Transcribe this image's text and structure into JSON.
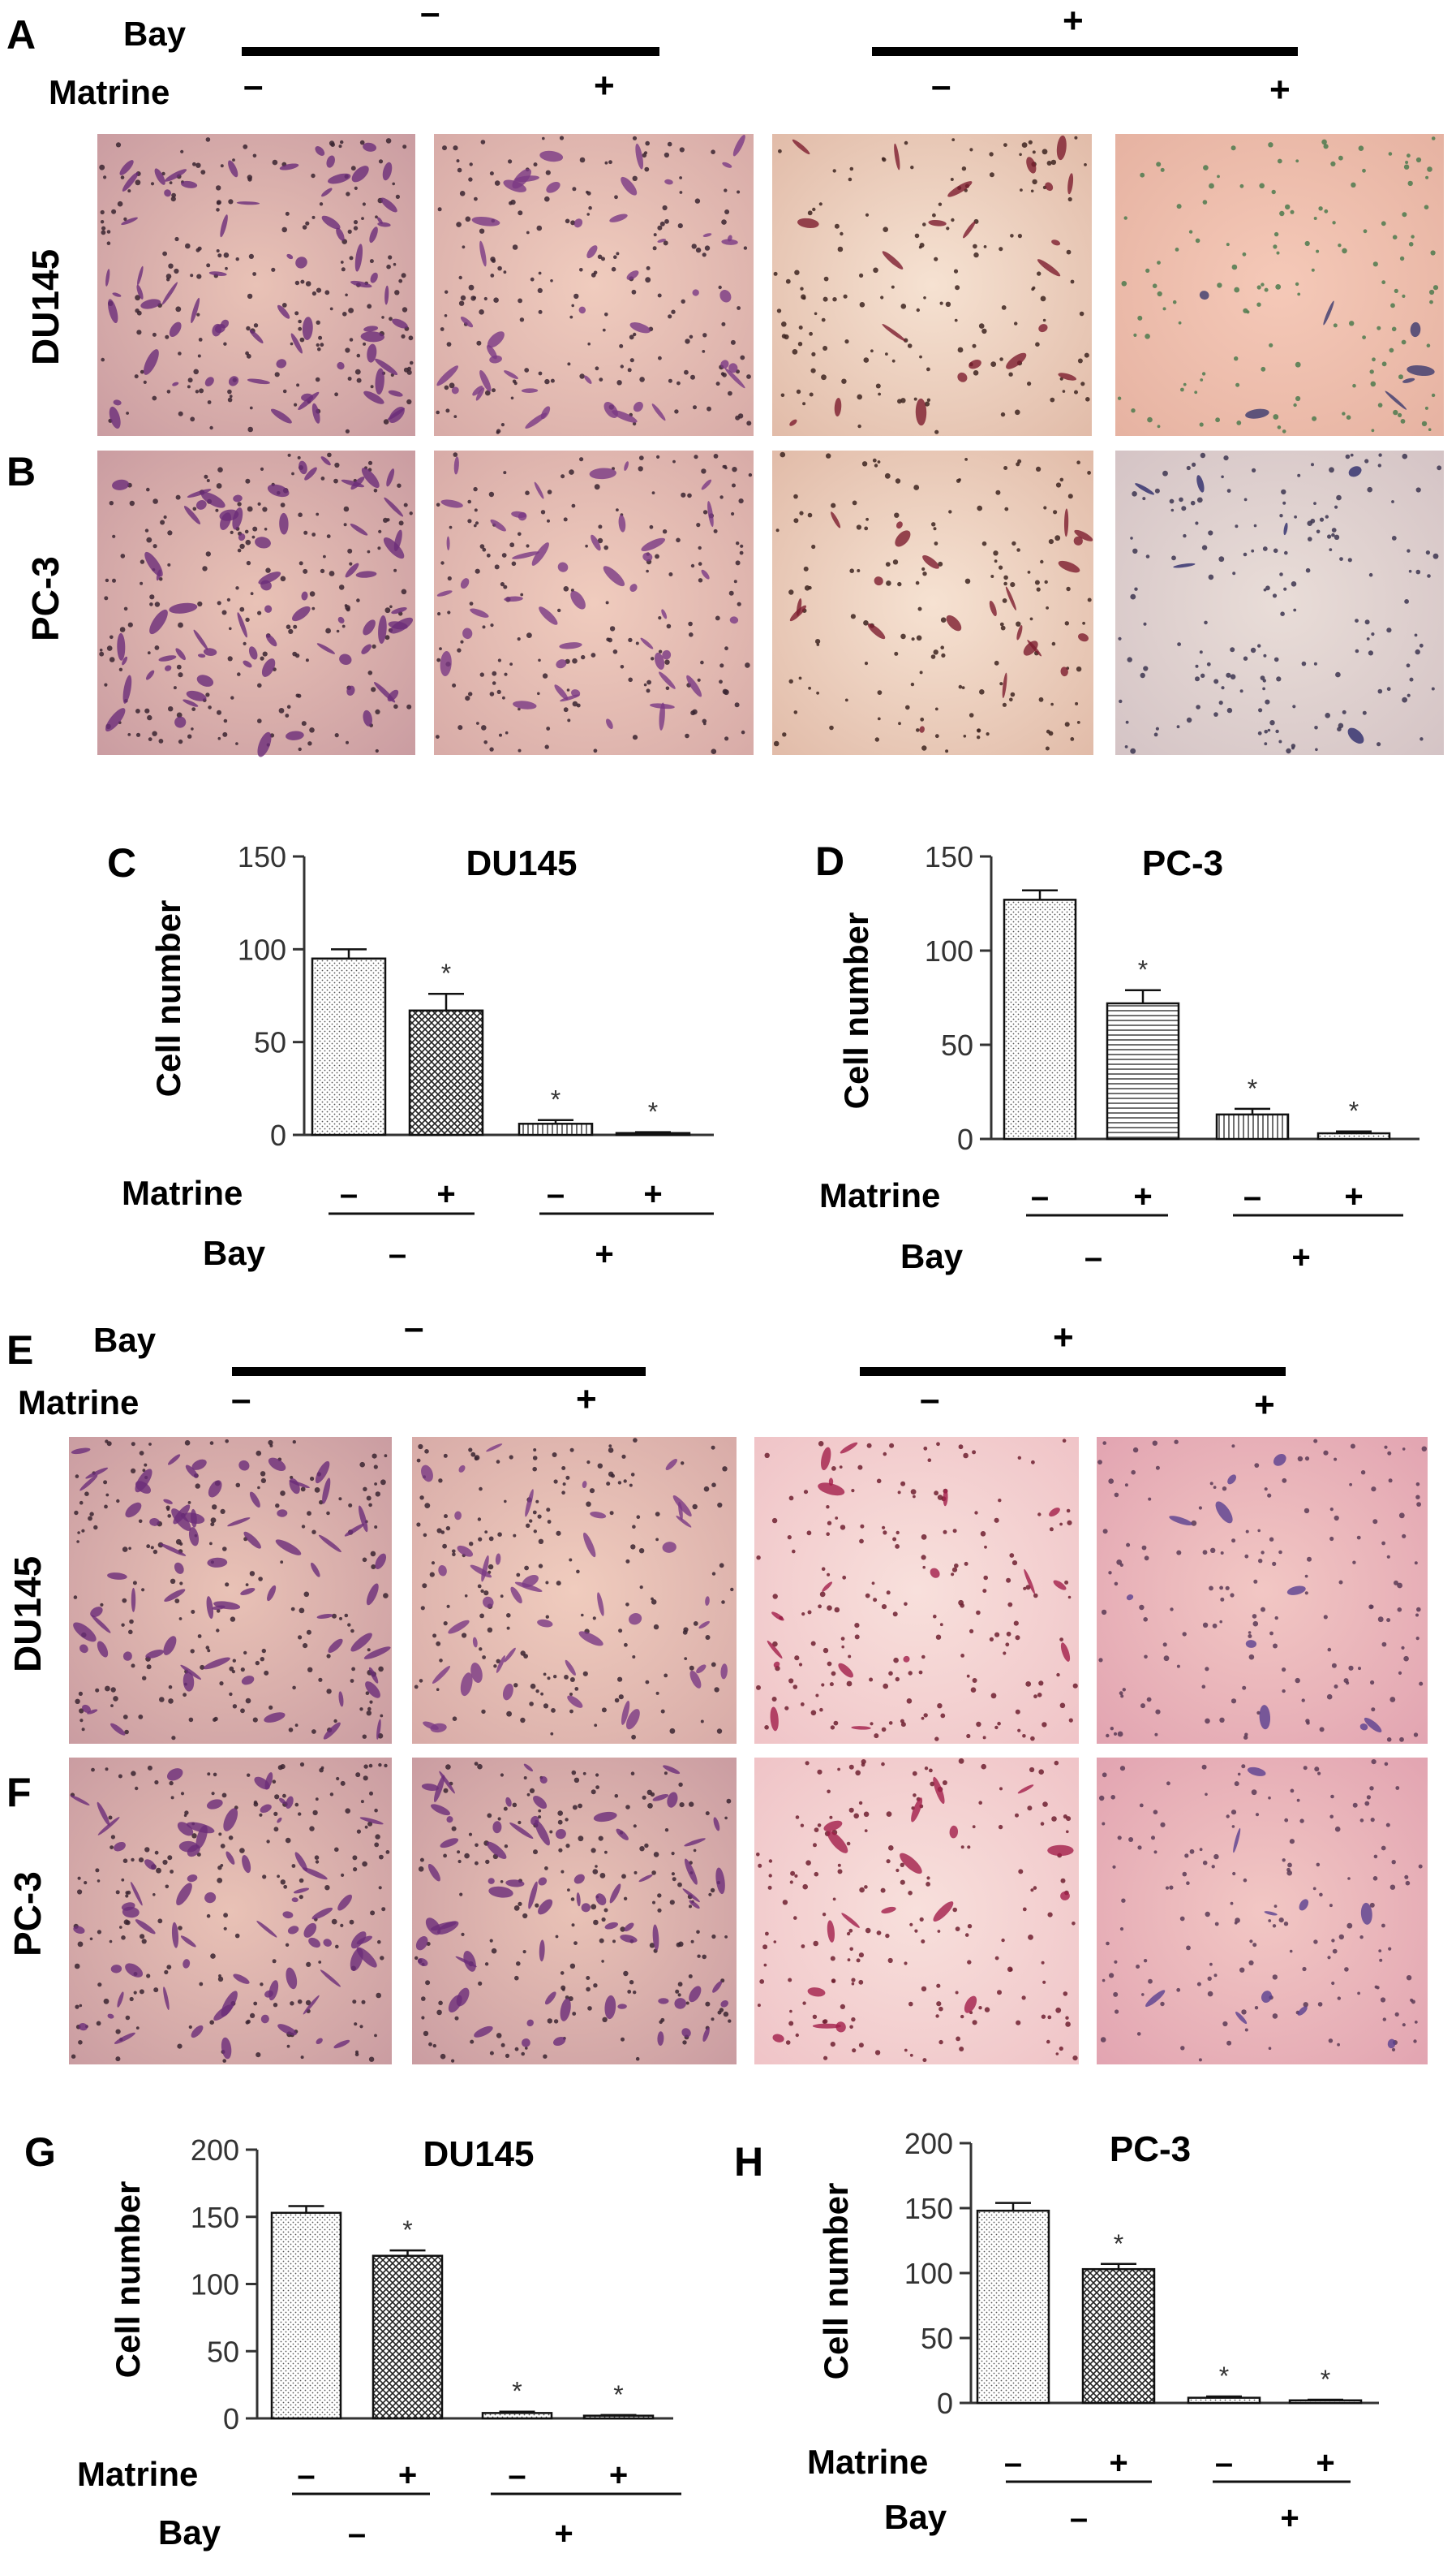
{
  "panel_letters": [
    "A",
    "B",
    "C",
    "D",
    "E",
    "F",
    "G",
    "H"
  ],
  "treatment_header": {
    "bay_label": "Bay",
    "matrine_label": "Matrine",
    "minus": "–",
    "plus": "+"
  },
  "row_labels": {
    "du145": "DU145",
    "pc3": "PC-3"
  },
  "micrographs": {
    "A": {
      "style": [
        "purple-dense",
        "purple-medium",
        "maroon-sparse",
        "green-sparse"
      ]
    },
    "B": {
      "style": [
        "purple-dense",
        "purple-medium",
        "maroon-sparse",
        "lavender-sparse"
      ]
    },
    "E": {
      "style": [
        "purple-dense",
        "purple-medium",
        "pink-sparse",
        "pink-very-sparse"
      ]
    },
    "F": {
      "style": [
        "purple-dense",
        "purple-dense",
        "pink-sparse",
        "pink-very-sparse"
      ]
    }
  },
  "axis_label_cells": "Cell number",
  "significance_marker": "*",
  "chart_data": [
    {
      "panel": "C",
      "type": "bar",
      "title": "DU145",
      "ylabel": "Cell number",
      "ylim": [
        0,
        150
      ],
      "yticks": [
        0,
        50,
        100,
        150
      ],
      "values": [
        95,
        67,
        6,
        1
      ],
      "errors": [
        5,
        9,
        2,
        0.5
      ],
      "significant": [
        false,
        true,
        true,
        true
      ],
      "patterns": [
        "dots",
        "crosshatch",
        "vstripes",
        "dots"
      ],
      "matrine": [
        "–",
        "+",
        "–",
        "+"
      ],
      "bay": [
        "–",
        "+"
      ]
    },
    {
      "panel": "D",
      "type": "bar",
      "title": "PC-3",
      "ylabel": "Cell number",
      "ylim": [
        0,
        150
      ],
      "yticks": [
        0,
        50,
        100,
        150
      ],
      "values": [
        127,
        72,
        13,
        3
      ],
      "errors": [
        5,
        7,
        3,
        1
      ],
      "significant": [
        false,
        true,
        true,
        true
      ],
      "patterns": [
        "dots",
        "hstripes",
        "vstripes",
        "dots"
      ],
      "matrine": [
        "–",
        "+",
        "–",
        "+"
      ],
      "bay": [
        "–",
        "+"
      ]
    },
    {
      "panel": "G",
      "type": "bar",
      "title": "DU145",
      "ylabel": "Cell number",
      "ylim": [
        0,
        200
      ],
      "yticks": [
        0,
        50,
        100,
        150,
        200
      ],
      "values": [
        153,
        121,
        4,
        2
      ],
      "errors": [
        5,
        4,
        1,
        0.5
      ],
      "significant": [
        false,
        true,
        true,
        true
      ],
      "patterns": [
        "dots",
        "crosshatch",
        "dots",
        "dots"
      ],
      "matrine": [
        "–",
        "+",
        "–",
        "+"
      ],
      "bay": [
        "–",
        "+"
      ]
    },
    {
      "panel": "H",
      "type": "bar",
      "title": "PC-3",
      "ylabel": "Cell number",
      "ylim": [
        0,
        200
      ],
      "yticks": [
        0,
        50,
        100,
        150,
        200
      ],
      "values": [
        148,
        103,
        4,
        2
      ],
      "errors": [
        6,
        4,
        1,
        0.5
      ],
      "significant": [
        false,
        true,
        true,
        true
      ],
      "patterns": [
        "dots",
        "crosshatch",
        "dots",
        "dots"
      ],
      "matrine": [
        "–",
        "+",
        "–",
        "+"
      ],
      "bay": [
        "–",
        "+"
      ]
    }
  ]
}
